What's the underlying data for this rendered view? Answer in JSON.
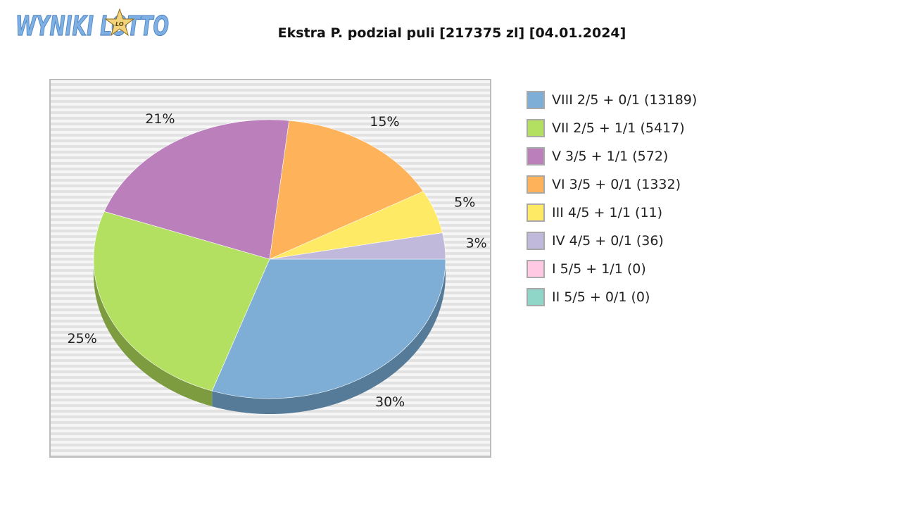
{
  "logo": {
    "text": "WYNIKI LOTTO",
    "badge": "LO",
    "color": "#7fb0e4",
    "badge_color": "#f2d27a"
  },
  "chart_data": {
    "type": "pie",
    "title": "Ekstra P. podzial puli [217375 zl] [04.01.2024]",
    "start_angle_deg": 0,
    "direction": "clockwise",
    "grid": false,
    "legend_placement": "right",
    "slices": [
      {
        "label": "VIII 2/5 + 0/1 (13189)",
        "percent": 30,
        "percent_label": "30%",
        "color": "#7eaed5",
        "shadow": "#557b98"
      },
      {
        "label": "VII 2/5 + 1/1 (5417)",
        "percent": 25,
        "percent_label": "25%",
        "color": "#b3e060",
        "shadow": "#7c9c3f"
      },
      {
        "label": "V 3/5 + 1/1 (572)",
        "percent": 21,
        "percent_label": "21%",
        "color": "#bb7fbc",
        "shadow": "#83578a"
      },
      {
        "label": "VI 3/5 + 0/1 (1332)",
        "percent": 15,
        "percent_label": "15%",
        "color": "#feb35a",
        "shadow": "#b5803f"
      },
      {
        "label": "III 4/5 + 1/1 (11)",
        "percent": 5,
        "percent_label": "5%",
        "color": "#feea64",
        "shadow": "#b4a647"
      },
      {
        "label": "IV 4/5 + 0/1 (36)",
        "percent": 3,
        "percent_label": "3%",
        "color": "#c0b9dc",
        "shadow": "#87829c"
      },
      {
        "label": "I 5/5 + 1/1 (0)",
        "percent": 0,
        "percent_label": "",
        "color": "#ffc9e4",
        "shadow": "#b38da0"
      },
      {
        "label": "II 5/5 + 0/1 (0)",
        "percent": 0,
        "percent_label": "",
        "color": "#8fd6c8",
        "shadow": "#64968c"
      }
    ]
  }
}
